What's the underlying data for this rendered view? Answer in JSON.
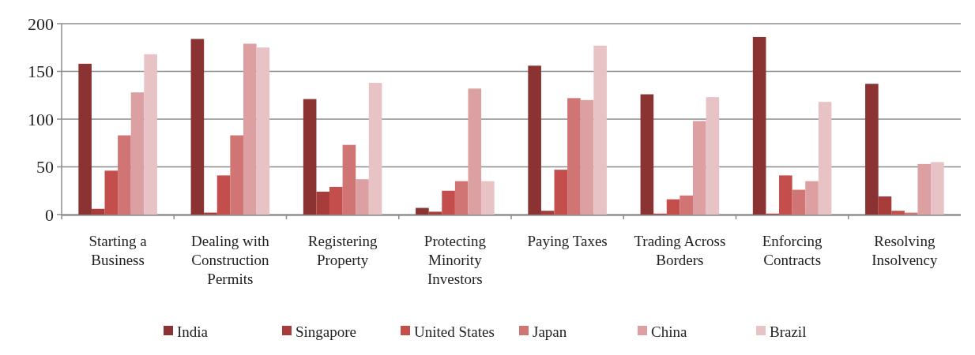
{
  "chart_data": {
    "type": "bar",
    "categories": [
      "Starting a Business",
      "Dealing with Construction Permits",
      "Registering Property",
      "Protecting Minority Investors",
      "Paying Taxes",
      "Trading Across Borders",
      "Enforcing Contracts",
      "Resolving Insolvency"
    ],
    "series": [
      {
        "name": "India",
        "color": "#8b3333",
        "values": [
          158,
          184,
          121,
          7,
          156,
          126,
          186,
          137
        ]
      },
      {
        "name": "Singapore",
        "color": "#a83c3a",
        "values": [
          6,
          2,
          24,
          3,
          4,
          1,
          1,
          19
        ]
      },
      {
        "name": "United States",
        "color": "#c44e4b",
        "values": [
          46,
          41,
          29,
          25,
          47,
          16,
          41,
          4
        ]
      },
      {
        "name": "Japan",
        "color": "#d17474",
        "values": [
          83,
          83,
          73,
          35,
          122,
          20,
          26,
          2
        ]
      },
      {
        "name": "China",
        "color": "#dca0a2",
        "values": [
          128,
          179,
          37,
          132,
          120,
          98,
          35,
          53
        ]
      },
      {
        "name": "Brazil",
        "color": "#e8c3c6",
        "values": [
          168,
          175,
          138,
          35,
          177,
          123,
          118,
          55
        ]
      }
    ],
    "ylim": [
      0,
      200
    ],
    "yticks": [
      0,
      50,
      100,
      150,
      200
    ],
    "grid": "y",
    "legend": "bottom"
  }
}
